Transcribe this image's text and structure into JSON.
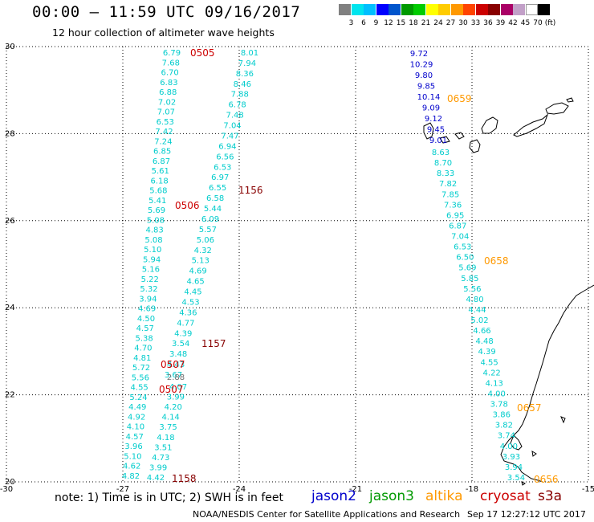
{
  "header": {
    "title": "00:00 – 11:59 UTC 09/16/2017",
    "subtitle": "12 hour collection of altimeter wave heights"
  },
  "legend": {
    "colors": [
      "#808080",
      "#00e5ee",
      "#00bfff",
      "#0000ff",
      "#0055cc",
      "#009900",
      "#00cc00",
      "#ffff00",
      "#ffcc00",
      "#ff9900",
      "#ff4400",
      "#cc0000",
      "#880000",
      "#aa0066",
      "#c2a0c8",
      "#ffffff",
      "#000000"
    ],
    "labels": [
      "3",
      "6",
      "9",
      "12",
      "15",
      "18",
      "21",
      "24",
      "27",
      "30",
      "33",
      "36",
      "39",
      "42",
      "45",
      "70",
      "(ft)"
    ]
  },
  "axes": {
    "x_ticks": [
      "-30",
      "-27",
      "-24",
      "-21",
      "-18",
      "-15"
    ],
    "y_ticks": [
      "30",
      "28",
      "26",
      "24",
      "22",
      "20"
    ]
  },
  "tracks": [
    {
      "color": "#00cccc",
      "values": [
        "6.79",
        "7.68",
        "6.70",
        "6.83",
        "6.88",
        "7.02",
        "7.07",
        "6.53",
        "7.42",
        "7.24",
        "6.85",
        "6.87",
        "5.61",
        "6.18",
        "5.68",
        "5.41",
        "5.69",
        "5.08",
        "4.83",
        "5.08",
        "5.10",
        "5.94",
        "5.16",
        "5.22",
        "5.32",
        "3.94",
        "4.69",
        "4.50",
        "4.57",
        "5.38",
        "4.70",
        "4.81",
        "5.72",
        "5.56",
        "4.55",
        "5.24",
        "4.49",
        "4.92",
        "4.10",
        "4.57",
        "3.96",
        "5.10",
        "4.62",
        "4.82"
      ]
    },
    {
      "color": "#00cccc",
      "values": [
        "8.01",
        "7.94",
        "8.36",
        "8.46",
        "7.88",
        "6.78",
        "7.48",
        "7.04",
        "7.47",
        "6.94",
        "6.56",
        "6.53",
        "6.97",
        "6.55",
        "6.58",
        "5.44",
        "6.09",
        "5.57",
        "5.06",
        "4.32",
        "5.13",
        "4.69",
        "4.65",
        "4.45",
        "4.53",
        "4.36",
        "4.77",
        "4.39",
        "3.54",
        "3.48",
        "4.43",
        "3.67"
      ]
    },
    {
      "color": "#707070",
      "values": [
        "2.88"
      ]
    },
    {
      "color": "#00cccc",
      "values": [
        "4.07",
        "3.99",
        "4.20",
        "4.14",
        "3.75",
        "4.18",
        "3.51",
        "4.73",
        "3.99",
        "4.42"
      ]
    },
    {
      "color": "#0000cc",
      "values": [
        "9.72",
        "10.29",
        "9.80",
        "9.85",
        "10.14",
        "9.09",
        "9.12",
        "9.45",
        "9.01"
      ]
    },
    {
      "color": "#00cccc",
      "values": [
        "8.63",
        "8.70",
        "8.33",
        "7.82",
        "7.85",
        "7.36",
        "6.95",
        "6.87",
        "7.04",
        "6.53",
        "6.50",
        "5.69",
        "5.85",
        "5.56",
        "4.80",
        "4.44",
        "5.02",
        "4.66",
        "4.48",
        "4.39",
        "4.55",
        "4.22",
        "4.13",
        "4.00",
        "3.78",
        "3.86",
        "3.82",
        "3.74",
        "4.00",
        "3.93",
        "3.94",
        "3.54"
      ]
    }
  ],
  "time_labels": [
    {
      "text": "0505",
      "color": "#cc0000"
    },
    {
      "text": "0506",
      "color": "#cc0000"
    },
    {
      "text": "0507",
      "color": "#cc0000"
    },
    {
      "text": "0507",
      "color": "#cc0000"
    },
    {
      "text": "1156",
      "color": "#880000"
    },
    {
      "text": "1157",
      "color": "#880000"
    },
    {
      "text": "1158",
      "color": "#880000"
    },
    {
      "text": "0659",
      "color": "#ff9900"
    },
    {
      "text": "0658",
      "color": "#ff9900"
    },
    {
      "text": "0657",
      "color": "#ff9900"
    },
    {
      "text": "0656",
      "color": "#ff9900"
    }
  ],
  "footer": {
    "note": "note: 1) Time is in UTC; 2) SWH is in feet",
    "satellites": [
      {
        "name": "jason2",
        "color": "#0000cc"
      },
      {
        "name": "jason3",
        "color": "#009900"
      },
      {
        "name": "altika",
        "color": "#ff9900"
      },
      {
        "name": "cryosat",
        "color": "#cc0000"
      },
      {
        "name": "s3a",
        "color": "#880000"
      }
    ],
    "credit": "NOAA/NESDIS Center for Satellite Applications and Research",
    "timestamp": "Sep 17 12:27:12 UTC 2017"
  }
}
